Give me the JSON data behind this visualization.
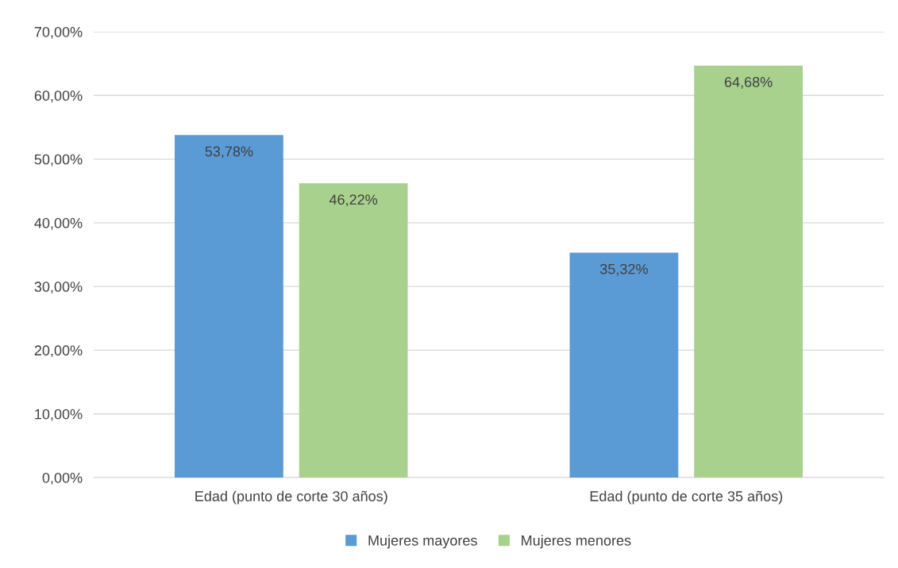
{
  "chart_data": {
    "type": "bar",
    "categories": [
      "Edad (punto de corte 30 años)",
      "Edad (punto de corte 35 años)"
    ],
    "series": [
      {
        "name": "Mujeres mayores",
        "color": "#5b9bd5",
        "values": [
          53.78,
          35.32
        ],
        "value_labels": [
          "53,78%",
          "35,32%"
        ]
      },
      {
        "name": "Mujeres menores",
        "color": "#a9d18e",
        "values": [
          46.22,
          64.68
        ],
        "value_labels": [
          "46,22%",
          "64,68%"
        ]
      }
    ],
    "ylim": [
      0,
      70
    ],
    "yticks": [
      {
        "value": 0,
        "label": "0,00%"
      },
      {
        "value": 10,
        "label": "10,00%"
      },
      {
        "value": 20,
        "label": "20,00%"
      },
      {
        "value": 30,
        "label": "30,00%"
      },
      {
        "value": 40,
        "label": "40,00%"
      },
      {
        "value": 50,
        "label": "50,00%"
      },
      {
        "value": 60,
        "label": "60,00%"
      },
      {
        "value": 70,
        "label": "70,00%"
      }
    ],
    "grid": "y",
    "legend": "bottom"
  }
}
